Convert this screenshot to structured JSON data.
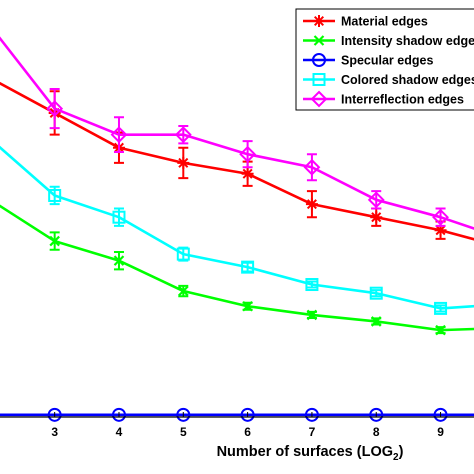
{
  "chart_data": {
    "type": "line",
    "xlabel": "Number of surfaces (LOG",
    "xlabel_subscript": "2",
    "xlabel_suffix": ")",
    "x_ticks": [
      3,
      4,
      5,
      6,
      7,
      8,
      9
    ],
    "xlim": [
      2.15,
      9.52
    ],
    "ylim": [
      0,
      9.6
    ],
    "grid": false,
    "legend_position": "top-right",
    "series": [
      {
        "name": "Material edges",
        "color": "#ff0000",
        "marker": "asterisk",
        "x": [
          2,
          3,
          4,
          5,
          6,
          7,
          8,
          9,
          10
        ],
        "y": [
          7.8,
          7.0,
          6.2,
          5.85,
          5.6,
          4.9,
          4.6,
          4.3,
          3.9
        ],
        "err": [
          0.12,
          0.5,
          0.35,
          0.35,
          0.28,
          0.3,
          0.2,
          0.2,
          0.2
        ]
      },
      {
        "name": "Intensity shadow edges",
        "color": "#00ff00",
        "marker": "x",
        "x": [
          2,
          3,
          4,
          5,
          6,
          7,
          8,
          9,
          10
        ],
        "y": [
          5.0,
          4.05,
          3.6,
          2.9,
          2.55,
          2.35,
          2.2,
          2.0,
          2.05
        ],
        "err": [
          0.05,
          0.2,
          0.2,
          0.12,
          0.08,
          0.07,
          0.07,
          0.07,
          0.07
        ]
      },
      {
        "name": "Specular edges",
        "color": "#0000ff",
        "marker": "circle",
        "x": [
          2,
          3,
          4,
          5,
          6,
          7,
          8,
          9,
          10
        ],
        "y": [
          0.05,
          0.05,
          0.05,
          0.05,
          0.05,
          0.05,
          0.05,
          0.05,
          0.05
        ],
        "err": [
          0,
          0,
          0,
          0,
          0,
          0,
          0,
          0,
          0
        ]
      },
      {
        "name": "Colored shadow edges",
        "color": "#00ffff",
        "marker": "square",
        "x": [
          2,
          3,
          4,
          5,
          6,
          7,
          8,
          9,
          10
        ],
        "y": [
          6.4,
          5.1,
          4.6,
          3.75,
          3.45,
          3.05,
          2.85,
          2.5,
          2.6
        ],
        "err": [
          0.05,
          0.2,
          0.2,
          0.15,
          0.1,
          0.07,
          0.07,
          0.07,
          0.07
        ]
      },
      {
        "name": "Interreflection edges",
        "color": "#ff00ff",
        "marker": "diamond",
        "x": [
          2,
          3,
          4,
          5,
          6,
          7,
          8,
          9,
          10
        ],
        "y": [
          9.0,
          7.1,
          6.5,
          6.5,
          6.05,
          5.75,
          5.0,
          4.6,
          4.1
        ],
        "err": [
          0.05,
          0.45,
          0.4,
          0.2,
          0.3,
          0.3,
          0.2,
          0.2,
          0.2
        ]
      }
    ]
  }
}
